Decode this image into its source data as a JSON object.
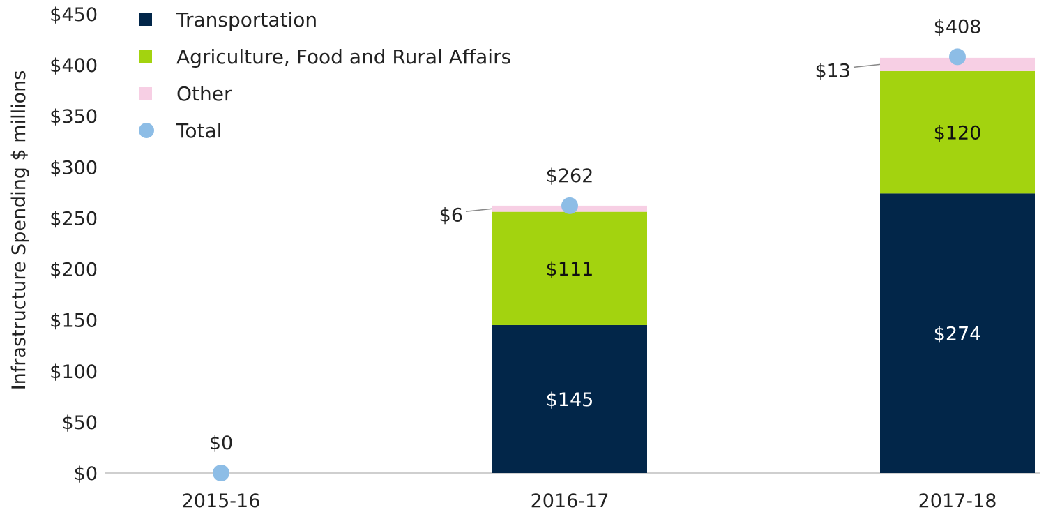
{
  "chart_data": {
    "type": "bar",
    "stacked": true,
    "title": "",
    "xlabel": "",
    "ylabel": "Infrastructure Spending $ millions",
    "ylim": [
      0,
      450
    ],
    "yticks": [
      "$0",
      "$50",
      "$100",
      "$150",
      "$200",
      "$250",
      "$300",
      "$350",
      "$400",
      "$450"
    ],
    "ytick_values": [
      0,
      50,
      100,
      150,
      200,
      250,
      300,
      350,
      400,
      450
    ],
    "categories": [
      "2015-16",
      "2016-17",
      "2017-18"
    ],
    "series": [
      {
        "name": "Transportation",
        "color": "#022649",
        "label_color": "#ffffff",
        "values": [
          0,
          145,
          274
        ],
        "labels": [
          "",
          "$145",
          "$274"
        ]
      },
      {
        "name": "Agriculture, Food and Rural Affairs",
        "color": "#a3d30f",
        "label_color": "#111111",
        "values": [
          0,
          111,
          120
        ],
        "labels": [
          "",
          "$111",
          "$120"
        ]
      },
      {
        "name": "Other",
        "color": "#f7cfe4",
        "label_color": "#222222",
        "values": [
          0,
          6,
          13
        ],
        "labels": [
          "",
          "$6",
          "$13"
        ]
      }
    ],
    "totals": {
      "name": "Total",
      "color": "#8dbde6",
      "values": [
        0,
        262,
        408
      ],
      "labels": [
        "$0",
        "$262",
        "$408"
      ]
    },
    "legend_position": "top-left",
    "grid": false
  }
}
